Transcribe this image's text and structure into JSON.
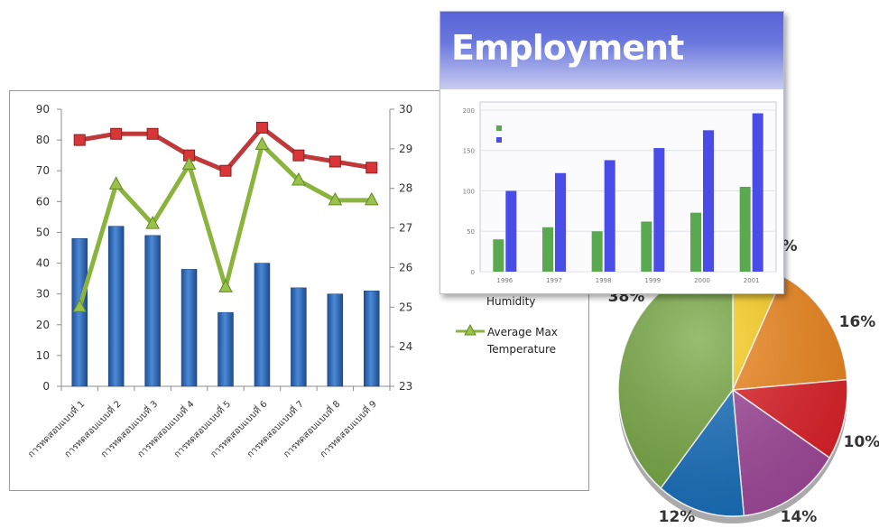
{
  "chart_data": [
    {
      "type": "bar+line",
      "categories": [
        "การทดสอบแบบที่ 1",
        "การทดสอบแบบที่ 2",
        "การทดสอบแบบที่ 3",
        "การทดสอบแบบที่ 4",
        "การทดสอบแบบที่ 5",
        "การทดสอบแบบที่ 6",
        "การทดสอบแบบที่ 7",
        "การทดสอบแบบที่ 8",
        "การทดสอบแบบที่ 9"
      ],
      "series": [
        {
          "axis": "left",
          "kind": "bar",
          "color": "#2f6dbd",
          "values": [
            48,
            52,
            49,
            38,
            24,
            40,
            32,
            30,
            31
          ]
        },
        {
          "axis": "left",
          "kind": "line",
          "marker": "square",
          "color": "#c0393a",
          "values": [
            80,
            82,
            82,
            75,
            70,
            84,
            75,
            73,
            71
          ]
        },
        {
          "axis": "right",
          "kind": "line",
          "marker": "triangle",
          "color": "#8ab43d",
          "name": "Average Max Temperature",
          "values": [
            25.0,
            28.1,
            27.1,
            28.6,
            25.5,
            29.1,
            28.2,
            27.7,
            27.7
          ]
        }
      ],
      "legend_visible": [
        "Humidity",
        "Average Max",
        "Temperature"
      ],
      "y_left": {
        "ylim": [
          0,
          90
        ],
        "ticks": [
          "0",
          "10",
          "20",
          "30",
          "40",
          "50",
          "60",
          "70",
          "80",
          "90"
        ]
      },
      "y_right": {
        "ylim": [
          23,
          30
        ],
        "ticks": [
          "23",
          "24",
          "25",
          "26",
          "27",
          "28",
          "29",
          "30"
        ]
      },
      "grid": false
    },
    {
      "type": "bar",
      "title": "Employment",
      "categories": [
        "1996",
        "1997",
        "1998",
        "1999",
        "2000",
        "2001"
      ],
      "series": [
        {
          "color": "#5aa84f",
          "values": [
            40,
            55,
            50,
            62,
            73,
            105
          ]
        },
        {
          "color": "#4a4ce8",
          "values": [
            100,
            122,
            138,
            153,
            175,
            196
          ]
        }
      ],
      "ylim": [
        0,
        210
      ],
      "ticks": [
        "0",
        "50",
        "100",
        "150",
        "200"
      ]
    },
    {
      "type": "pie",
      "slice_colors": [
        "#ffd21f",
        "#f2891f",
        "#e32129",
        "#a3499c",
        "#1770bf",
        "#77a843"
      ],
      "values": [
        7,
        16,
        10,
        14,
        12,
        38
      ],
      "labels": [
        "%",
        "16%",
        "10%",
        "14%",
        "12%",
        "38%"
      ]
    }
  ]
}
